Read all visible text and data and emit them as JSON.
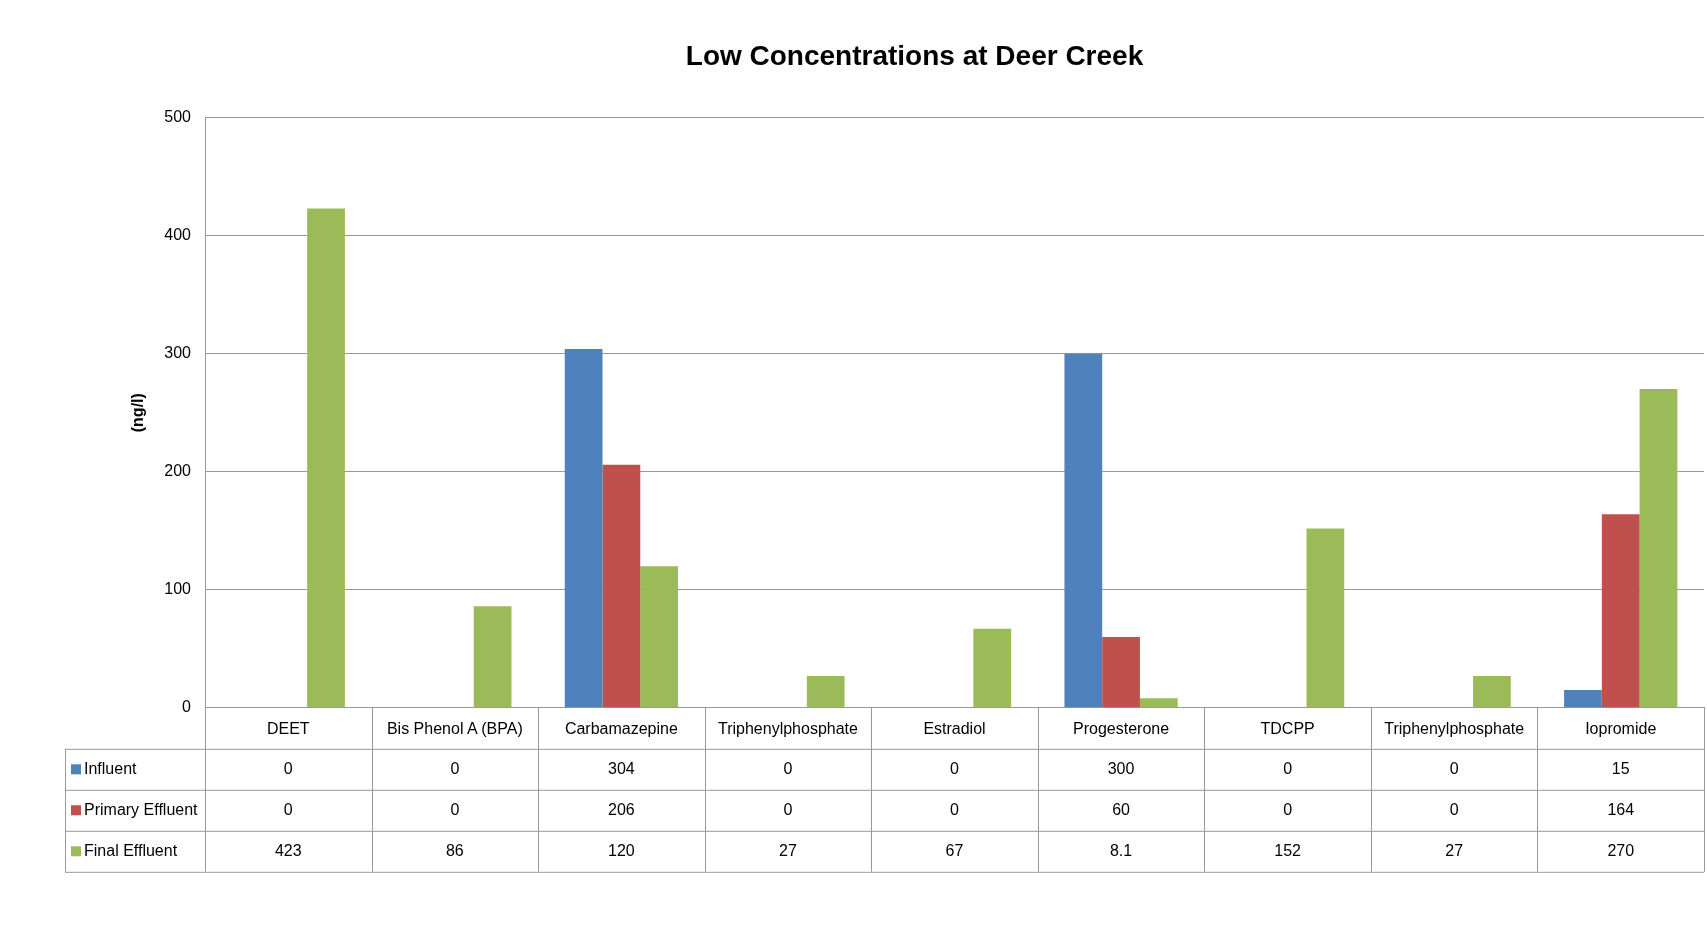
{
  "chart_data": {
    "type": "bar",
    "title": "Low Concentrations at Deer Creek",
    "ylabel": "(ng/l)",
    "categories": [
      "DEET",
      "Bis Phenol A (BPA)",
      "Carbamazepine",
      "Triphenylphosphate",
      "Estradiol",
      "Progesterone",
      "TDCPP",
      "Triphenylphosphate",
      "Iopromide"
    ],
    "series": [
      {
        "name": "Influent",
        "color": "#4f81bd",
        "values": [
          0,
          0,
          304,
          0,
          0,
          300,
          0,
          0,
          15
        ]
      },
      {
        "name": "Primary Effluent",
        "color": "#c0504d",
        "values": [
          0,
          0,
          206,
          0,
          0,
          60,
          0,
          0,
          164
        ]
      },
      {
        "name": "Final Effluent",
        "color": "#9bbb59",
        "values": [
          423,
          86,
          120,
          27,
          67,
          8.1,
          152,
          27,
          270
        ]
      }
    ],
    "ylim": [
      0,
      500
    ],
    "yticks": [
      0,
      100,
      200,
      300,
      400,
      500
    ],
    "grid": "y",
    "legend": "bottom",
    "data_labels": true
  }
}
